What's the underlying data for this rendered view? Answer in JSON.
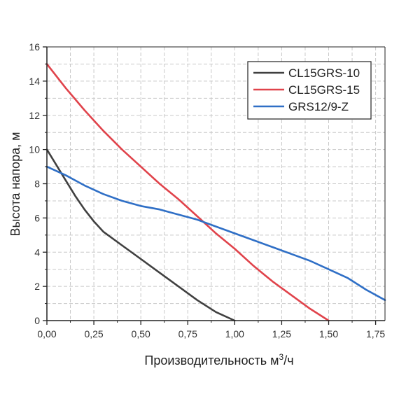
{
  "chart_data": {
    "type": "line",
    "title": "",
    "xlabel": "Производительность м",
    "xlabel_sup": "3",
    "xlabel_suffix": "/ч",
    "ylabel": "Высота напора, м",
    "xlim": [
      0,
      1.8
    ],
    "ylim": [
      0,
      16
    ],
    "x_ticks": [
      0,
      0.25,
      0.5,
      0.75,
      1.0,
      1.25,
      1.5,
      1.75
    ],
    "x_tick_labels": [
      "0,00",
      "0,25",
      "0,50",
      "0,75",
      "1,00",
      "1,25",
      "1,50",
      "1,75"
    ],
    "y_ticks": [
      0,
      2,
      4,
      6,
      8,
      10,
      12,
      14,
      16
    ],
    "y_tick_labels": [
      "0",
      "2",
      "4",
      "6",
      "8",
      "10",
      "12",
      "14",
      "16"
    ],
    "grid": true,
    "legend_position": "top-right",
    "series": [
      {
        "name": "CL15GRS-10",
        "color": "#404040",
        "x": [
          0,
          0.05,
          0.1,
          0.15,
          0.2,
          0.25,
          0.3,
          0.4,
          0.5,
          0.6,
          0.7,
          0.8,
          0.9,
          1.0
        ],
        "y": [
          10,
          9.1,
          8.2,
          7.3,
          6.5,
          5.8,
          5.2,
          4.4,
          3.6,
          2.8,
          2.0,
          1.2,
          0.5,
          0
        ]
      },
      {
        "name": "CL15GRS-15",
        "color": "#e0434b",
        "x": [
          0,
          0.1,
          0.2,
          0.3,
          0.4,
          0.5,
          0.6,
          0.7,
          0.8,
          0.9,
          1.0,
          1.1,
          1.2,
          1.3,
          1.4,
          1.5
        ],
        "y": [
          15,
          13.6,
          12.3,
          11.1,
          10.0,
          9.0,
          8.0,
          7.1,
          6.1,
          5.1,
          4.2,
          3.2,
          2.3,
          1.5,
          0.7,
          0
        ]
      },
      {
        "name": "GRS12/9-Z",
        "color": "#2f6fc6",
        "x": [
          0,
          0.1,
          0.2,
          0.3,
          0.4,
          0.5,
          0.6,
          0.7,
          0.8,
          0.9,
          1.0,
          1.1,
          1.2,
          1.3,
          1.4,
          1.5,
          1.6,
          1.7,
          1.8
        ],
        "y": [
          9,
          8.5,
          7.9,
          7.4,
          7.0,
          6.7,
          6.5,
          6.2,
          5.9,
          5.5,
          5.1,
          4.7,
          4.3,
          3.9,
          3.5,
          3.0,
          2.5,
          1.8,
          1.2
        ]
      }
    ]
  }
}
